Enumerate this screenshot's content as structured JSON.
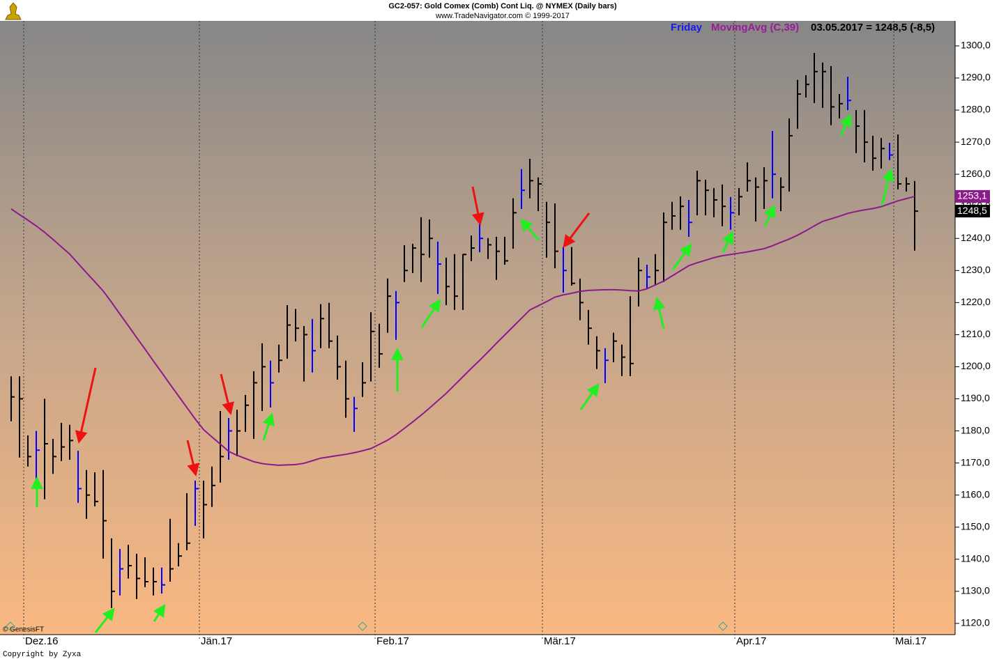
{
  "chart_data": {
    "type": "ohlc",
    "title": "GC2-057:  Gold Comex (Comb) Cont Liq. @ NYMEX  (Daily bars)",
    "subtitle": "www.TradeNavigator.com © 1999-2017",
    "day_label": "Friday",
    "readout": "03.05.2017 = 1248,5 (-8,5)",
    "source_note": "© GenesisFT",
    "copyright": "Copyright by Zyxa",
    "bar_color": "#000000",
    "highlight_color": "#0000ff",
    "highlight_bars": [
      3,
      8,
      13,
      18,
      22,
      26,
      31,
      36,
      41,
      46,
      51,
      56,
      61,
      66,
      71,
      76,
      81,
      86,
      91,
      100,
      105
    ],
    "categories": [
      null,
      null,
      "Dez.16",
      null,
      null,
      null,
      null,
      null,
      null,
      null,
      null,
      null,
      null,
      null,
      null,
      null,
      null,
      null,
      null,
      null,
      null,
      null,
      null,
      "Jän.17",
      null,
      null,
      null,
      null,
      null,
      null,
      null,
      null,
      null,
      null,
      null,
      null,
      null,
      null,
      null,
      null,
      null,
      null,
      null,
      null,
      "Feb.17",
      null,
      null,
      null,
      null,
      null,
      null,
      null,
      null,
      null,
      null,
      null,
      null,
      null,
      null,
      null,
      null,
      null,
      null,
      null,
      "Mär.17",
      null,
      null,
      null,
      null,
      null,
      null,
      null,
      null,
      null,
      null,
      null,
      null,
      null,
      null,
      null,
      null,
      null,
      null,
      null,
      null,
      null,
      null,
      "Apr.17",
      null,
      null,
      null,
      null,
      null,
      null,
      null,
      null,
      null,
      null,
      null,
      null,
      null,
      null,
      null,
      null,
      null,
      null,
      "Mai.17",
      null,
      null
    ],
    "high": [
      1197,
      1197,
      1178.6,
      1180,
      1190,
      1177.5,
      1182.5,
      1181.9,
      1173.8,
      1167.8,
      1167.1,
      1167.8,
      1146.5,
      1143.2,
      1144.5,
      1141.7,
      1140.6,
      1137.4,
      1137.4,
      1152.6,
      1145,
      1160.6,
      1164.5,
      1164.5,
      1168.9,
      1186.2,
      1184,
      1186.6,
      1191.2,
      1198.6,
      1207.3,
      1201.9,
      1206.9,
      1219.2,
      1218,
      1212.7,
      1214.9,
      1219.5,
      1219.9,
      1209.7,
      1201.9,
      1190.6,
      1201.4,
      1217,
      1213.4,
      1227.5,
      1223.6,
      1237.9,
      1238.3,
      1246.6,
      1245.9,
      1239,
      1234,
      1235.1,
      1235.1,
      1240.9,
      1245.3,
      1240.1,
      1240.5,
      1240.5,
      1252.5,
      1261.6,
      1264.8,
      1259,
      1251.4,
      1250.9,
      1237.3,
      1237.3,
      1227.5,
      1217.7,
      1209.5,
      1205.8,
      1210.6,
      1206.9,
      1222,
      1234,
      1231.8,
      1235.1,
      1248.1,
      1251.4,
      1253.1,
      1252,
      1261.1,
      1258.3,
      1255.7,
      1256.8,
      1252.9,
      1255.7,
      1263.7,
      1259,
      1262.2,
      1273.5,
      1259,
      1277.4,
      1289.4,
      1290.9,
      1297.8,
      1294.8,
      1293.7,
      1285,
      1290.4,
      1280,
      1280,
      1272,
      1271.3,
      1269.8,
      1272.4,
      1259,
      1257.9
    ],
    "low": [
      1183,
      1171.7,
      1168.9,
      1162.3,
      1158.7,
      1166.6,
      1170.6,
      1171,
      1157.6,
      1152.6,
      1156.5,
      1140.2,
      1124.8,
      1128.7,
      1134,
      1127.6,
      1131.3,
      1128.7,
      1129.3,
      1133,
      1137.8,
      1142.8,
      1150.4,
      1146.5,
      1156.3,
      1163.9,
      1171,
      1172.1,
      1179.7,
      1177.5,
      1186.2,
      1187.3,
      1198.2,
      1202.5,
      1207.9,
      1195.4,
      1198.2,
      1205.8,
      1205.8,
      1196,
      1184.1,
      1179.7,
      1190.6,
      1195.4,
      1199.7,
      1210.6,
      1208.4,
      1226.4,
      1229.2,
      1226.4,
      1234,
      1222.7,
      1219.2,
      1217.7,
      1217.7,
      1232.9,
      1235.7,
      1233.6,
      1227.1,
      1231.8,
      1236.8,
      1249.2,
      1252.5,
      1248.5,
      1234,
      1230.7,
      1223.1,
      1225.3,
      1214.5,
      1206.9,
      1199.3,
      1194.9,
      1201.4,
      1197.1,
      1197.1,
      1218.8,
      1224.2,
      1225.3,
      1226.4,
      1242.7,
      1242.7,
      1240.5,
      1247.2,
      1247.2,
      1246.6,
      1243.8,
      1242.7,
      1247.2,
      1254.6,
      1245.3,
      1249.2,
      1252.5,
      1248.5,
      1254.6,
      1274.2,
      1283.9,
      1282.2,
      1280.7,
      1275.3,
      1277.4,
      1280,
      1266.6,
      1263.7,
      1261.1,
      1261.8,
      1264.4,
      1255.3,
      1254.6,
      1236.2
    ],
    "close": [
      1190.6,
      1190,
      1172,
      1174,
      1176,
      1172,
      1175,
      1177,
      1162,
      1160,
      1158,
      1152,
      1130,
      1137,
      1138,
      1134,
      1133,
      1133,
      1132,
      1137,
      1141,
      1145,
      1162,
      1157,
      1163,
      1172,
      1180,
      1180,
      1188,
      1195,
      1200,
      1195,
      1202,
      1213,
      1212,
      1210,
      1205,
      1215,
      1208,
      1200,
      1190,
      1187,
      1195,
      1211,
      1204,
      1222,
      1220,
      1230,
      1237,
      1235,
      1240,
      1232,
      1225,
      1222,
      1235,
      1237,
      1240,
      1238,
      1236,
      1233,
      1248,
      1255,
      1258,
      1257,
      1245,
      1236,
      1230,
      1226,
      1220,
      1212,
      1205,
      1202,
      1208,
      1203,
      1201,
      1230,
      1228,
      1230,
      1245,
      1247,
      1250,
      1245,
      1258,
      1255,
      1252,
      1250,
      1248,
      1253,
      1258,
      1256,
      1258,
      1260,
      1256,
      1272,
      1285,
      1288,
      1292,
      1292,
      1281,
      1282,
      1283,
      1275,
      1270,
      1265,
      1268,
      1266,
      1257,
      1257,
      1248.5
    ],
    "last_close_label": "1248,5",
    "series": [
      {
        "name": "MovingAvg (C,39)",
        "color": "#8b1a8b",
        "values": [
          1249.2,
          1247.4,
          1245.7,
          1243.9,
          1241.9,
          1239.7,
          1237.4,
          1235.1,
          1232.2,
          1229.3,
          1226.5,
          1223.6,
          1220.1,
          1216.4,
          1212.8,
          1209.1,
          1205.5,
          1201.8,
          1198.2,
          1194.5,
          1190.9,
          1187.3,
          1183.7,
          1180.4,
          1178.1,
          1175.9,
          1173.6,
          1172.4,
          1171.4,
          1170.4,
          1169.8,
          1169.5,
          1169.3,
          1169.4,
          1169.5,
          1169.9,
          1170.7,
          1171.5,
          1171.9,
          1172.3,
          1172.7,
          1173.2,
          1173.8,
          1174.5,
          1175.8,
          1177.1,
          1178.8,
          1180.8,
          1182.8,
          1184.9,
          1187.1,
          1189.4,
          1191.7,
          1194.3,
          1196.9,
          1199.5,
          1202,
          1204.6,
          1207.3,
          1209.9,
          1212.5,
          1215.1,
          1217.7,
          1219,
          1220.3,
          1221.7,
          1222.4,
          1222.9,
          1223.5,
          1223.8,
          1223.9,
          1224,
          1224,
          1223.9,
          1223.7,
          1223.6,
          1224.3,
          1225.5,
          1226.7,
          1228.3,
          1229.9,
          1231.5,
          1232.4,
          1233.2,
          1234,
          1234.6,
          1235,
          1235.4,
          1235.8,
          1236.3,
          1236.8,
          1237.7,
          1238.8,
          1239.8,
          1241,
          1242.4,
          1243.9,
          1245.3,
          1246.1,
          1246.9,
          1247.8,
          1248.4,
          1248.9,
          1249.3,
          1249.9,
          1250.8,
          1251.7,
          1252.4,
          1253.1
        ],
        "last_label": "1253,1"
      }
    ],
    "ylim": [
      1116.5,
      1307.8
    ],
    "yticks": [
      {
        "value": 1120,
        "label": "1120,0"
      },
      {
        "value": 1130,
        "label": "1130,0"
      },
      {
        "value": 1140,
        "label": "1140,0"
      },
      {
        "value": 1150,
        "label": "1150,0"
      },
      {
        "value": 1160,
        "label": "1160,0"
      },
      {
        "value": 1170,
        "label": "1170,0"
      },
      {
        "value": 1180,
        "label": "1180,0"
      },
      {
        "value": 1190,
        "label": "1190,0"
      },
      {
        "value": 1200,
        "label": "1200,0"
      },
      {
        "value": 1210,
        "label": "1210,0"
      },
      {
        "value": 1220,
        "label": "1220,0"
      },
      {
        "value": 1230,
        "label": "1230,0"
      },
      {
        "value": 1240,
        "label": "1240,0"
      },
      {
        "value": 1250,
        "label": "1250,0"
      },
      {
        "value": 1260,
        "label": "1260,0"
      },
      {
        "value": 1270,
        "label": "1270,0"
      },
      {
        "value": 1280,
        "label": "1280,0"
      },
      {
        "value": 1290,
        "label": "1290,0"
      },
      {
        "value": 1300,
        "label": "1300,0"
      }
    ]
  }
}
